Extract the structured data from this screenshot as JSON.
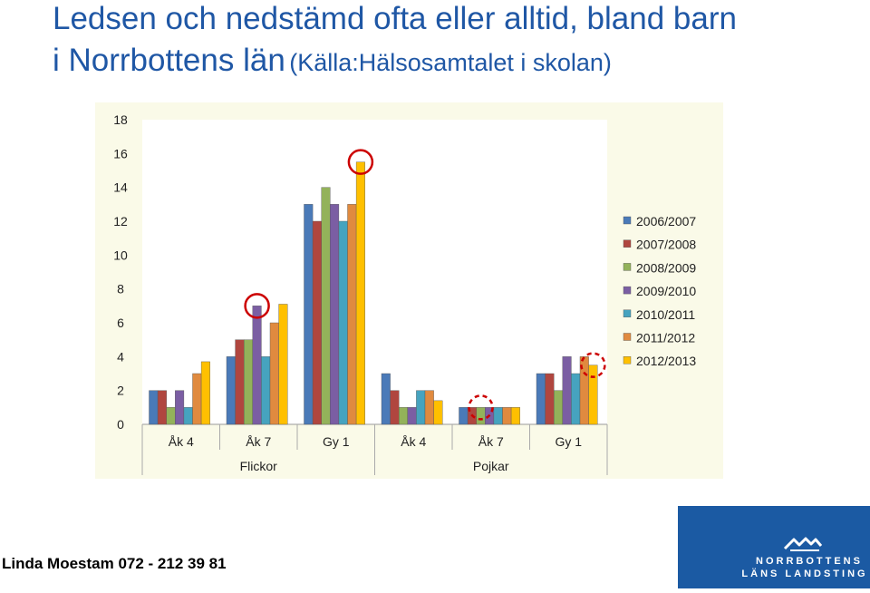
{
  "slide": {
    "title_main_line1": "Ledsen och nedstämd ofta eller alltid, bland barn",
    "title_main_line2": "i Norrbottens län",
    "title_source": "(Källa:Hälsosamtalet i skolan)",
    "footer": "Linda Moestam 072 - 212 39 81"
  },
  "logo": {
    "line1": "NORRBOTTENS",
    "line2": "LÄNS LANDSTING",
    "bg_color": "#1b5aa3"
  },
  "chart_data": {
    "type": "bar",
    "title": "",
    "xlabel": "",
    "ylabel": "",
    "ylim": [
      0,
      18
    ],
    "yticks": [
      0,
      2,
      4,
      6,
      8,
      10,
      12,
      14,
      16,
      18
    ],
    "grid": false,
    "legend_position": "right",
    "plot_background": "#fafae8",
    "categories": [
      "Åk 4",
      "Åk 7",
      "Gy 1",
      "Åk 4",
      "Åk 7",
      "Gy 1"
    ],
    "groups": [
      {
        "label": "Flickor",
        "span": 3
      },
      {
        "label": "Pojkar",
        "span": 3
      }
    ],
    "series": [
      {
        "name": "2006/2007",
        "color": "#4a7ab8",
        "values": [
          2,
          4,
          13,
          3,
          1,
          3
        ]
      },
      {
        "name": "2007/2008",
        "color": "#b0463f",
        "values": [
          2,
          5,
          12,
          2,
          1,
          3
        ]
      },
      {
        "name": "2008/2009",
        "color": "#93b25a",
        "values": [
          1,
          5,
          14,
          1,
          1,
          2
        ]
      },
      {
        "name": "2009/2010",
        "color": "#7b5ea3",
        "values": [
          2,
          7,
          13,
          1,
          1,
          4
        ]
      },
      {
        "name": "2010/2011",
        "color": "#46a3bf",
        "values": [
          1,
          4,
          12,
          2,
          1,
          3
        ]
      },
      {
        "name": "2011/2012",
        "color": "#e08a3f",
        "values": [
          3,
          6,
          13,
          2,
          1,
          4
        ]
      },
      {
        "name": "2012/2013",
        "color": "#ffc000",
        "values": [
          3.7,
          7.1,
          15.5,
          1.4,
          1,
          3.5
        ]
      }
    ],
    "annotations": [
      {
        "type": "circle",
        "category_index": 1,
        "series_index": 3,
        "style": "solid",
        "color": "#cc0000"
      },
      {
        "type": "circle",
        "category_index": 2,
        "series_index": 6,
        "style": "solid",
        "color": "#cc0000"
      },
      {
        "type": "circle",
        "category_index": 4,
        "series_index": 2,
        "style": "dashed",
        "color": "#cc0000"
      },
      {
        "type": "circle",
        "category_index": 5,
        "series_index": 6,
        "style": "dashed",
        "color": "#cc0000"
      }
    ]
  }
}
